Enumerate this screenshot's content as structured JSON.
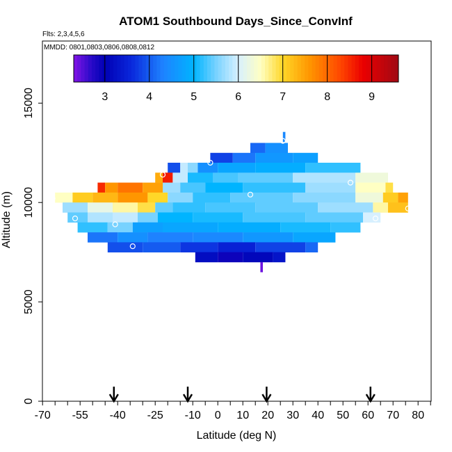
{
  "chart_data": {
    "type": "heatmap",
    "title": "ATOM1 Southbound Days_Since_ConvInf",
    "subtitle_flights": "Flts: 2,3,4,5,6",
    "subtitle_dates": "MMDD: 0801,0803,0806,0808,0812",
    "xlabel": "Latitude (deg N)",
    "ylabel": "Altitude (m)",
    "xlim": [
      -70,
      85
    ],
    "ylim": [
      0,
      17500
    ],
    "x_tick_labels": [
      "-70",
      "-55",
      "-40",
      "-25",
      "-10",
      "0",
      "10",
      "20",
      "30",
      "40",
      "50",
      "60",
      "70",
      "80"
    ],
    "y_tick_labels": [
      "0",
      "5000",
      "10000",
      "15000"
    ],
    "colorbar": {
      "range": [
        2.3,
        9.6
      ],
      "tick_labels": [
        "3",
        "4",
        "5",
        "6",
        "7",
        "8",
        "9"
      ],
      "tick_values": [
        3,
        4,
        5,
        6,
        7,
        8,
        9
      ]
    },
    "value_field": "Days_Since_ConvInf (days)",
    "layers": [
      {
        "alt": 13300,
        "segments": [
          [
            26,
            27,
            4.4
          ]
        ]
      },
      {
        "alt": 12750,
        "segments": [
          [
            13,
            19,
            4.1
          ],
          [
            19,
            28,
            4.5
          ]
        ]
      },
      {
        "alt": 12250,
        "segments": [
          [
            -3,
            6,
            3.8
          ],
          [
            6,
            15,
            4.2
          ],
          [
            15,
            30,
            4.6
          ],
          [
            30,
            40,
            4.7
          ]
        ]
      },
      {
        "alt": 11750,
        "segments": [
          [
            -20,
            -15,
            3.9
          ],
          [
            -15,
            -12,
            5.9
          ],
          [
            -12,
            -8,
            5.6
          ],
          [
            -8,
            0,
            4.5
          ],
          [
            0,
            15,
            4.8
          ],
          [
            15,
            35,
            4.9
          ],
          [
            35,
            57,
            5.2
          ]
        ]
      },
      {
        "alt": 11250,
        "segments": [
          [
            -25,
            -22,
            7.4
          ],
          [
            -22,
            -18,
            8.6
          ],
          [
            -18,
            -12,
            5.9
          ],
          [
            -12,
            -2,
            5.1
          ],
          [
            -2,
            8,
            5.3
          ],
          [
            8,
            30,
            5.4
          ],
          [
            30,
            55,
            5.8
          ],
          [
            55,
            68,
            6.3
          ]
        ]
      },
      {
        "alt": 10750,
        "segments": [
          [
            -48,
            -45,
            8.5
          ],
          [
            -45,
            -40,
            7.6
          ],
          [
            -40,
            -30,
            7.9
          ],
          [
            -30,
            -22,
            7.5
          ],
          [
            -22,
            -15,
            5.7
          ],
          [
            -15,
            -5,
            5.3
          ],
          [
            -5,
            10,
            5.0
          ],
          [
            10,
            35,
            5.2
          ],
          [
            35,
            55,
            5.7
          ],
          [
            55,
            67,
            6.5
          ],
          [
            67,
            70,
            6.9
          ]
        ]
      },
      {
        "alt": 10250,
        "segments": [
          [
            -65,
            -58,
            6.5
          ],
          [
            -58,
            -50,
            7.1
          ],
          [
            -50,
            -40,
            7.3
          ],
          [
            -40,
            -28,
            7.6
          ],
          [
            -28,
            -20,
            7.0
          ],
          [
            -20,
            -10,
            5.6
          ],
          [
            -10,
            5,
            5.2
          ],
          [
            5,
            30,
            5.4
          ],
          [
            30,
            55,
            5.6
          ],
          [
            55,
            66,
            6.3
          ],
          [
            66,
            72,
            7.1
          ],
          [
            72,
            76,
            7.5
          ]
        ]
      },
      {
        "alt": 9750,
        "segments": [
          [
            -62,
            -52,
            5.7
          ],
          [
            -52,
            -42,
            6.2
          ],
          [
            -42,
            -32,
            6.6
          ],
          [
            -32,
            -25,
            6.9
          ],
          [
            -25,
            -18,
            5.4
          ],
          [
            -18,
            -5,
            5.2
          ],
          [
            -5,
            15,
            5.3
          ],
          [
            15,
            40,
            5.4
          ],
          [
            40,
            62,
            5.7
          ],
          [
            62,
            68,
            6.6
          ],
          [
            68,
            76,
            7.2
          ]
        ]
      },
      {
        "alt": 9250,
        "segments": [
          [
            -60,
            -52,
            5.4
          ],
          [
            -52,
            -42,
            5.8
          ],
          [
            -42,
            -32,
            5.9
          ],
          [
            -32,
            -24,
            5.5
          ],
          [
            -24,
            -10,
            5.0
          ],
          [
            -10,
            10,
            5.1
          ],
          [
            10,
            35,
            5.3
          ],
          [
            35,
            58,
            5.4
          ],
          [
            58,
            65,
            6.0
          ]
        ]
      },
      {
        "alt": 8750,
        "segments": [
          [
            -56,
            -44,
            5.2
          ],
          [
            -44,
            -34,
            5.5
          ],
          [
            -34,
            -22,
            4.7
          ],
          [
            -22,
            0,
            4.8
          ],
          [
            0,
            25,
            4.9
          ],
          [
            25,
            45,
            5.1
          ],
          [
            45,
            57,
            5.2
          ]
        ]
      },
      {
        "alt": 8250,
        "segments": [
          [
            -52,
            -40,
            4.2
          ],
          [
            -40,
            -28,
            4.5
          ],
          [
            -28,
            -10,
            4.3
          ],
          [
            -10,
            10,
            4.4
          ],
          [
            10,
            30,
            4.6
          ],
          [
            30,
            47,
            4.8
          ]
        ]
      },
      {
        "alt": 7750,
        "segments": [
          [
            -44,
            -30,
            3.9
          ],
          [
            -30,
            -15,
            4.0
          ],
          [
            -15,
            0,
            3.7
          ],
          [
            0,
            15,
            3.5
          ],
          [
            15,
            35,
            3.8
          ],
          [
            35,
            40,
            4.1
          ]
        ]
      },
      {
        "alt": 7250,
        "segments": [
          [
            -9,
            0,
            3.2
          ],
          [
            0,
            10,
            2.9
          ],
          [
            10,
            22,
            3.1
          ],
          [
            22,
            27,
            3.3
          ]
        ]
      },
      {
        "alt": 6750,
        "segments": [
          [
            17,
            18,
            2.4
          ]
        ]
      }
    ],
    "points": [
      {
        "lat": 26,
        "alt": 13100
      },
      {
        "lat": -3,
        "alt": 12000
      },
      {
        "lat": -22,
        "alt": 11400
      },
      {
        "lat": 53,
        "alt": 11000
      },
      {
        "lat": -66,
        "alt": 10200
      },
      {
        "lat": 13,
        "alt": 10400
      },
      {
        "lat": -57,
        "alt": 9200
      },
      {
        "lat": -41,
        "alt": 8900
      },
      {
        "lat": 63,
        "alt": 9200
      },
      {
        "lat": 76,
        "alt": 9700
      },
      {
        "lat": -34,
        "alt": 7800
      }
    ],
    "arrows_lat": [
      -41.5,
      -12,
      19.5,
      61
    ]
  }
}
